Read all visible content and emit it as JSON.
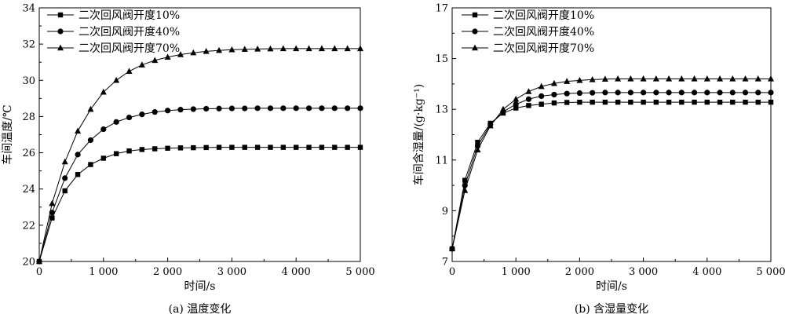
{
  "chart_data": [
    {
      "type": "line",
      "caption": "(a) 温度变化",
      "xlabel": "时间/s",
      "ylabel": "车间温度/℃",
      "xlim": [
        0,
        5000
      ],
      "ylim": [
        20,
        34
      ],
      "xticks": [
        0,
        1000,
        2000,
        3000,
        4000,
        5000
      ],
      "xtick_labels": [
        "0",
        "1 000",
        "2 000",
        "3 000",
        "4 000",
        "5 000"
      ],
      "yticks": [
        20,
        22,
        24,
        26,
        28,
        30,
        32,
        34
      ],
      "ytick_labels": [
        "20",
        "22",
        "24",
        "26",
        "28",
        "30",
        "32",
        "34"
      ],
      "grid": false,
      "legend_position": "top-left",
      "x": [
        0,
        200,
        400,
        600,
        800,
        1000,
        1200,
        1400,
        1600,
        1800,
        2000,
        2200,
        2400,
        2600,
        2800,
        3000,
        3200,
        3400,
        3600,
        3800,
        4000,
        4200,
        4400,
        4600,
        4800,
        5000
      ],
      "series": [
        {
          "name": "二次回风阀开度10%",
          "marker": "square",
          "values": [
            20.0,
            22.4,
            23.9,
            24.8,
            25.35,
            25.7,
            25.95,
            26.1,
            26.18,
            26.22,
            26.25,
            26.27,
            26.28,
            26.29,
            26.3,
            26.3,
            26.3,
            26.3,
            26.3,
            26.3,
            26.3,
            26.3,
            26.3,
            26.3,
            26.3,
            26.3
          ]
        },
        {
          "name": "二次回风阀开度40%",
          "marker": "circle",
          "values": [
            20.0,
            22.7,
            24.6,
            25.9,
            26.7,
            27.3,
            27.7,
            27.95,
            28.12,
            28.25,
            28.33,
            28.38,
            28.41,
            28.43,
            28.44,
            28.45,
            28.45,
            28.46,
            28.46,
            28.46,
            28.46,
            28.46,
            28.46,
            28.46,
            28.46,
            28.46
          ]
        },
        {
          "name": "二次回风阀开度70%",
          "marker": "triangle",
          "values": [
            20.0,
            23.2,
            25.5,
            27.2,
            28.4,
            29.35,
            30.0,
            30.5,
            30.85,
            31.1,
            31.28,
            31.42,
            31.52,
            31.6,
            31.65,
            31.69,
            31.71,
            31.73,
            31.74,
            31.75,
            31.75,
            31.75,
            31.75,
            31.75,
            31.75,
            31.75
          ]
        }
      ]
    },
    {
      "type": "line",
      "caption": "(b) 含湿量变化",
      "xlabel": "时间/s",
      "ylabel": "车间含湿量/(g·kg⁻¹)",
      "xlim": [
        0,
        5000
      ],
      "ylim": [
        7,
        17
      ],
      "xticks": [
        0,
        1000,
        2000,
        3000,
        4000,
        5000
      ],
      "xtick_labels": [
        "0",
        "1 000",
        "2 000",
        "3 000",
        "4 000",
        "5 000"
      ],
      "yticks": [
        7,
        9,
        11,
        13,
        15,
        17
      ],
      "ytick_labels": [
        "7",
        "9",
        "11",
        "13",
        "15",
        "17"
      ],
      "grid": false,
      "legend_position": "top-left",
      "x": [
        0,
        200,
        400,
        600,
        800,
        1000,
        1200,
        1400,
        1600,
        1800,
        2000,
        2200,
        2400,
        2600,
        2800,
        3000,
        3200,
        3400,
        3600,
        3800,
        4000,
        4200,
        4400,
        4600,
        4800,
        5000
      ],
      "series": [
        {
          "name": "二次回风阀开度10%",
          "marker": "square",
          "values": [
            7.5,
            10.2,
            11.7,
            12.45,
            12.85,
            13.05,
            13.15,
            13.2,
            13.25,
            13.27,
            13.28,
            13.28,
            13.28,
            13.28,
            13.28,
            13.28,
            13.28,
            13.28,
            13.28,
            13.28,
            13.28,
            13.28,
            13.28,
            13.28,
            13.28,
            13.28
          ]
        },
        {
          "name": "二次回风阀开度40%",
          "marker": "circle",
          "values": [
            7.5,
            10.0,
            11.55,
            12.4,
            12.9,
            13.2,
            13.4,
            13.52,
            13.58,
            13.62,
            13.64,
            13.65,
            13.66,
            13.66,
            13.66,
            13.66,
            13.66,
            13.66,
            13.66,
            13.66,
            13.66,
            13.66,
            13.66,
            13.66,
            13.66,
            13.66
          ]
        },
        {
          "name": "二次回风阀开度70%",
          "marker": "triangle",
          "values": [
            7.5,
            9.8,
            11.4,
            12.35,
            13.0,
            13.4,
            13.7,
            13.9,
            14.02,
            14.1,
            14.14,
            14.17,
            14.19,
            14.2,
            14.2,
            14.2,
            14.2,
            14.2,
            14.2,
            14.2,
            14.2,
            14.2,
            14.2,
            14.2,
            14.2,
            14.2
          ]
        }
      ]
    }
  ]
}
